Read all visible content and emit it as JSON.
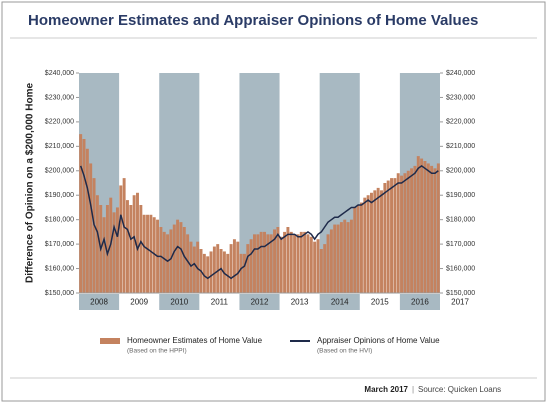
{
  "chart_data": {
    "type": "bar-line",
    "title": "Homeowner Estimates and Appraiser Opinions of Home Values",
    "y_axis_label": "Difference of Opinion on a $200,000 Home",
    "year_labels": [
      "2008",
      "2009",
      "2010",
      "2011",
      "2012",
      "2013",
      "2014",
      "2015",
      "2016",
      "2017"
    ],
    "ylim": [
      150000,
      240000
    ],
    "yticks": [
      {
        "value": 150000,
        "label": "$150,000"
      },
      {
        "value": 160000,
        "label": "$160,000"
      },
      {
        "value": 170000,
        "label": "$170,000"
      },
      {
        "value": 180000,
        "label": "$180,000"
      },
      {
        "value": 190000,
        "label": "$190,000"
      },
      {
        "value": 200000,
        "label": "$200,000"
      },
      {
        "value": 210000,
        "label": "$210,000"
      },
      {
        "value": 220000,
        "label": "$220,000"
      },
      {
        "value": 230000,
        "label": "$230,000"
      },
      {
        "value": 240000,
        "label": "$240,000"
      }
    ],
    "y2lim": [
      150000,
      240000
    ],
    "y2ticks": [
      {
        "value": 150000,
        "label": "$150,000"
      },
      {
        "value": 160000,
        "label": "$160,000"
      },
      {
        "value": 170000,
        "label": "$170,000"
      },
      {
        "value": 180000,
        "label": "$180,000"
      },
      {
        "value": 190000,
        "label": "$190,000"
      },
      {
        "value": 200000,
        "label": "$200,000"
      },
      {
        "value": 210000,
        "label": "$210,000"
      },
      {
        "value": 220000,
        "label": "$220,000"
      },
      {
        "value": 230000,
        "label": "$230,000"
      },
      {
        "value": 240000,
        "label": "$240,000"
      }
    ],
    "series": [
      {
        "name": "Homeowner Estimates of Home Value",
        "note": "(Based on the HPPI)",
        "kind": "bar",
        "color": "#c4825f",
        "values": [
          215000,
          213000,
          209000,
          203000,
          197000,
          190000,
          186000,
          181000,
          186000,
          189000,
          183000,
          185000,
          194000,
          197000,
          188000,
          186000,
          190000,
          191000,
          186000,
          182000,
          182000,
          182000,
          181000,
          180000,
          177000,
          175000,
          174000,
          176000,
          178000,
          180000,
          179000,
          177000,
          174000,
          171000,
          169000,
          171000,
          168000,
          166000,
          165000,
          167000,
          169000,
          170000,
          168000,
          167000,
          166000,
          170000,
          172000,
          171000,
          166000,
          166000,
          170000,
          172000,
          174000,
          174000,
          175000,
          175000,
          174000,
          174000,
          176000,
          177000,
          173000,
          175000,
          177000,
          175000,
          174000,
          174000,
          175000,
          175000,
          174000,
          173000,
          171000,
          172000,
          168000,
          170000,
          174000,
          176000,
          178000,
          178000,
          179000,
          180000,
          179000,
          180000,
          185000,
          186000,
          187000,
          189000,
          190000,
          191000,
          192000,
          193000,
          192000,
          195000,
          196000,
          197000,
          197000,
          199000,
          198000,
          199000,
          200000,
          201000,
          202000,
          206000,
          205000,
          204000,
          203000,
          202000,
          201000,
          203000
        ]
      },
      {
        "name": "Appraiser Opinions of Home Value",
        "note": "(Based on the HVI)",
        "kind": "line",
        "color": "#1e2a4a",
        "values": [
          202000,
          198000,
          193000,
          186000,
          178000,
          175000,
          168000,
          172000,
          166000,
          170000,
          177000,
          173000,
          182000,
          177000,
          176000,
          172000,
          173000,
          168000,
          171000,
          169000,
          168000,
          167000,
          166000,
          165000,
          165000,
          164000,
          163000,
          164000,
          167000,
          169000,
          168000,
          165000,
          163000,
          161000,
          162000,
          160000,
          159000,
          157000,
          156000,
          157000,
          158000,
          159000,
          160000,
          158000,
          157000,
          156000,
          157000,
          158000,
          160000,
          161000,
          165000,
          166000,
          168000,
          168000,
          169000,
          169000,
          170000,
          171000,
          172000,
          174000,
          172000,
          173000,
          174000,
          174000,
          174000,
          173000,
          173000,
          174000,
          175000,
          174000,
          172000,
          174000,
          175000,
          177000,
          179000,
          180000,
          181000,
          181000,
          182000,
          183000,
          184000,
          185000,
          185000,
          186000,
          186000,
          187000,
          188000,
          187000,
          188000,
          189000,
          190000,
          191000,
          192000,
          193000,
          194000,
          195000,
          195000,
          196000,
          197000,
          198000,
          199000,
          201000,
          202000,
          201000,
          200000,
          199000,
          199000,
          200000
        ]
      }
    ],
    "footer_date": "March 2017",
    "footer_source": "Source: Quicken Loans"
  }
}
